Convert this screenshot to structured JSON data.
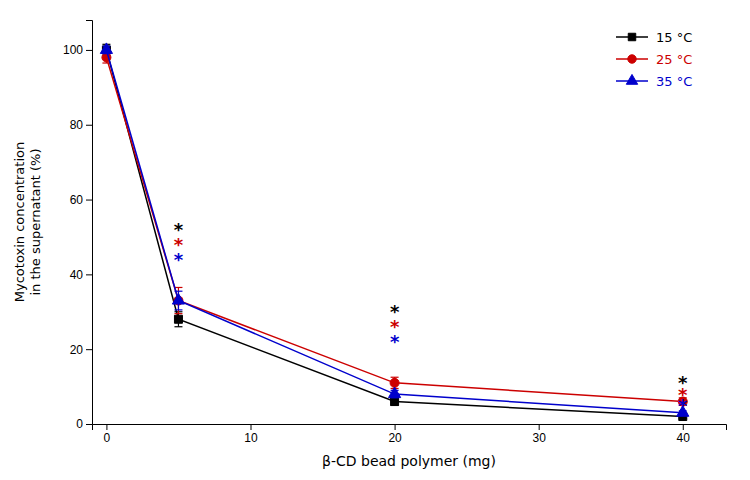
{
  "chart_data": {
    "type": "line",
    "xlabel": "β-CD bead polymer (mg)",
    "ylabel": "Mycotoxin concentration\nin the supernatant (%)",
    "x": [
      0,
      5,
      20,
      40
    ],
    "series": [
      {
        "name": "15 °C",
        "color": "#000000",
        "marker": "square",
        "values": [
          100,
          28,
          6,
          2
        ],
        "errors": [
          1.5,
          2.0,
          1.0,
          0.5
        ]
      },
      {
        "name": "25 °C",
        "color": "#cc0000",
        "marker": "circle",
        "values": [
          98,
          33,
          11,
          6
        ],
        "errors": [
          1.5,
          3.5,
          1.5,
          1.0
        ]
      },
      {
        "name": "35 °C",
        "color": "#0000cc",
        "marker": "triangle",
        "values": [
          100,
          33,
          8,
          3
        ],
        "errors": [
          1.0,
          2.5,
          1.0,
          0.5
        ]
      }
    ],
    "annotations": [
      {
        "text": "*",
        "x": 5,
        "y": 52,
        "color": "#000000"
      },
      {
        "text": "*",
        "x": 5,
        "y": 48,
        "color": "#cc0000"
      },
      {
        "text": "*",
        "x": 5,
        "y": 44,
        "color": "#0000cc"
      },
      {
        "text": "*",
        "x": 20,
        "y": 30,
        "color": "#000000"
      },
      {
        "text": "*",
        "x": 20,
        "y": 26,
        "color": "#cc0000"
      },
      {
        "text": "*",
        "x": 20,
        "y": 22,
        "color": "#0000cc"
      },
      {
        "text": "*",
        "x": 40,
        "y": 11,
        "color": "#000000"
      },
      {
        "text": "*",
        "x": 40,
        "y": 8,
        "color": "#cc0000"
      },
      {
        "text": "*",
        "x": 40,
        "y": 5,
        "color": "#0000cc"
      }
    ],
    "xlim": [
      -1,
      43
    ],
    "ylim": [
      0,
      108
    ],
    "xticks": [
      0,
      10,
      20,
      30,
      40
    ],
    "yticks": [
      0,
      20,
      40,
      60,
      80,
      100
    ],
    "grid": false,
    "legend": "upper right"
  }
}
